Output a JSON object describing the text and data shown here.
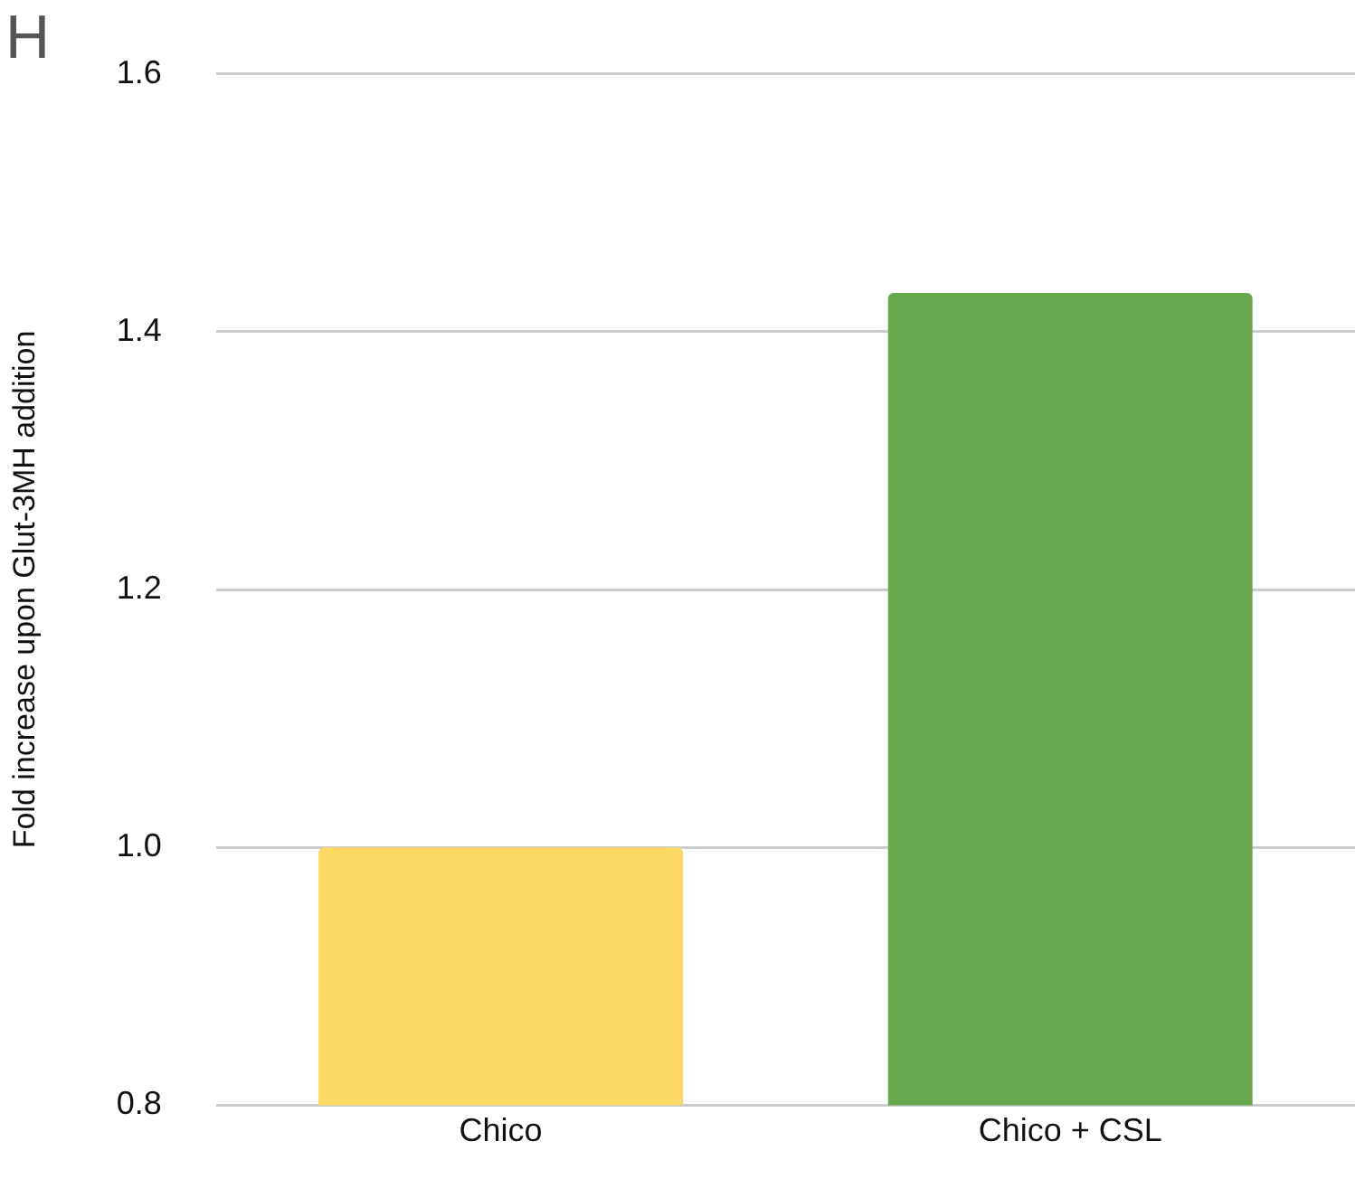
{
  "chart_data": {
    "type": "bar",
    "ylabel": "Fold increase upon Glut-3MH addition",
    "categories": [
      "Chico",
      "Chico + CSL"
    ],
    "values": [
      1.0,
      1.43
    ],
    "colors": [
      "#fdd866",
      "#6aa84f"
    ],
    "ylim": [
      0.8,
      1.6
    ],
    "yticks": [
      0.8,
      {
        "value": 1,
        "label": "1.0"
      },
      1.2,
      1.4,
      1.6
    ],
    "grid": "y",
    "legend": false,
    "annotations": [
      "H"
    ]
  }
}
